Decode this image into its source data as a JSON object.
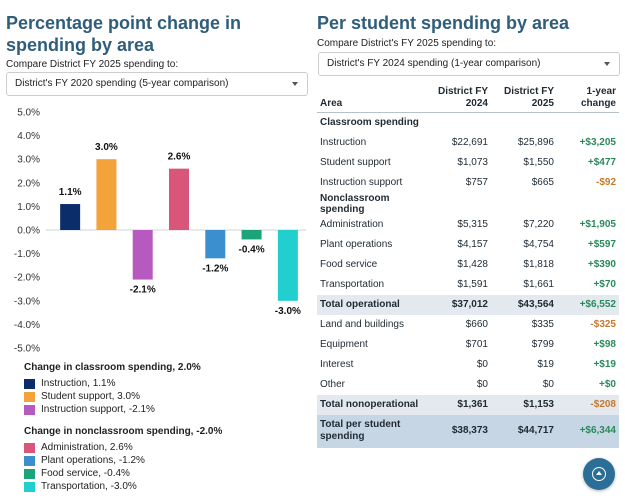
{
  "left": {
    "title": "Percentage point change in spending by area",
    "compare_label": "Compare District FY 2025 spending to:",
    "select_value": "District's FY 2020 spending (5-year comparison)",
    "legend_groups": [
      {
        "heading": "Change in classroom spending, 2.0%",
        "items": [
          {
            "label": "Instruction, 1.1%",
            "color": "#0b2e6b"
          },
          {
            "label": "Student support, 3.0%",
            "color": "#f4a33a"
          },
          {
            "label": "Instruction support, -2.1%",
            "color": "#b65abf"
          }
        ]
      },
      {
        "heading": "Change in nonclassroom spending, -2.0%",
        "items": [
          {
            "label": "Administration, 2.6%",
            "color": "#d9557a"
          },
          {
            "label": "Plant operations, -1.2%",
            "color": "#3b8fcf"
          },
          {
            "label": "Food service, -0.4%",
            "color": "#1ba37a"
          },
          {
            "label": "Transportation, -3.0%",
            "color": "#21cfcf"
          }
        ]
      }
    ]
  },
  "chart_data": {
    "type": "bar",
    "title": "",
    "xlabel": "",
    "ylabel": "",
    "categories": [
      "Instruction",
      "Student support",
      "Instruction support",
      "Administration",
      "Plant operations",
      "Food service",
      "Transportation"
    ],
    "values": [
      1.1,
      3.0,
      -2.1,
      2.6,
      -1.2,
      -0.4,
      -3.0
    ],
    "value_labels": [
      "1.1%",
      "3.0%",
      "-2.1%",
      "2.6%",
      "-1.2%",
      "-0.4%",
      "-3.0%"
    ],
    "colors": [
      "#0b2e6b",
      "#f4a33a",
      "#b65abf",
      "#d9557a",
      "#3b8fcf",
      "#1ba37a",
      "#21cfcf"
    ],
    "ylim": [
      -5,
      5
    ],
    "yticks": [
      5,
      4,
      3,
      2,
      1,
      0,
      -1,
      -2,
      -3,
      -4,
      -5
    ],
    "ytick_labels": [
      "5.0%",
      "4.0%",
      "3.0%",
      "2.0%",
      "1.0%",
      "0.0%",
      "-1.0%",
      "-2.0%",
      "-3.0%",
      "-4.0%",
      "-5.0%"
    ],
    "grid": false,
    "legend": "bottom"
  },
  "right": {
    "title": "Per student spending by area",
    "compare_label": "Compare District's FY 2025 spending to:",
    "select_value": "District's FY 2024 spending (1-year comparison)",
    "headers": {
      "area": "Area",
      "c1": "District FY 2024",
      "c2": "District FY 2025",
      "c3": "1-year change"
    },
    "rows": [
      {
        "kind": "section",
        "area": "Classroom spending",
        "v1": "",
        "v2": "",
        "chg": "",
        "sign": ""
      },
      {
        "kind": "row",
        "area": "Instruction",
        "v1": "$22,691",
        "v2": "$25,896",
        "chg": "+$3,205",
        "sign": "pos"
      },
      {
        "kind": "row",
        "area": "Student support",
        "v1": "$1,073",
        "v2": "$1,550",
        "chg": "+$477",
        "sign": "pos"
      },
      {
        "kind": "row",
        "area": "Instruction support",
        "v1": "$757",
        "v2": "$665",
        "chg": "-$92",
        "sign": "neg"
      },
      {
        "kind": "section",
        "area": "Nonclassroom spending",
        "v1": "",
        "v2": "",
        "chg": "",
        "sign": ""
      },
      {
        "kind": "row",
        "area": "Administration",
        "v1": "$5,315",
        "v2": "$7,220",
        "chg": "+$1,905",
        "sign": "pos"
      },
      {
        "kind": "row",
        "area": "Plant operations",
        "v1": "$4,157",
        "v2": "$4,754",
        "chg": "+$597",
        "sign": "pos"
      },
      {
        "kind": "row",
        "area": "Food service",
        "v1": "$1,428",
        "v2": "$1,818",
        "chg": "+$390",
        "sign": "pos"
      },
      {
        "kind": "row",
        "area": "Transportation",
        "v1": "$1,591",
        "v2": "$1,661",
        "chg": "+$70",
        "sign": "pos"
      },
      {
        "kind": "total",
        "area": "Total operational",
        "v1": "$37,012",
        "v2": "$43,564",
        "chg": "+$6,552",
        "sign": "pos"
      },
      {
        "kind": "row",
        "area": "Land and buildings",
        "v1": "$660",
        "v2": "$335",
        "chg": "-$325",
        "sign": "neg"
      },
      {
        "kind": "row",
        "area": "Equipment",
        "v1": "$701",
        "v2": "$799",
        "chg": "+$98",
        "sign": "pos"
      },
      {
        "kind": "row",
        "area": "Interest",
        "v1": "$0",
        "v2": "$19",
        "chg": "+$19",
        "sign": "pos"
      },
      {
        "kind": "row",
        "area": "Other",
        "v1": "$0",
        "v2": "$0",
        "chg": "+$0",
        "sign": "pos"
      },
      {
        "kind": "total",
        "area": "Total nonoperational",
        "v1": "$1,361",
        "v2": "$1,153",
        "chg": "-$208",
        "sign": "neg"
      },
      {
        "kind": "grand",
        "area": "Total per student spending",
        "v1": "$38,373",
        "v2": "$44,717",
        "chg": "+$6,344",
        "sign": "pos"
      }
    ]
  },
  "fab_icon": "arrow-up-circle-icon"
}
